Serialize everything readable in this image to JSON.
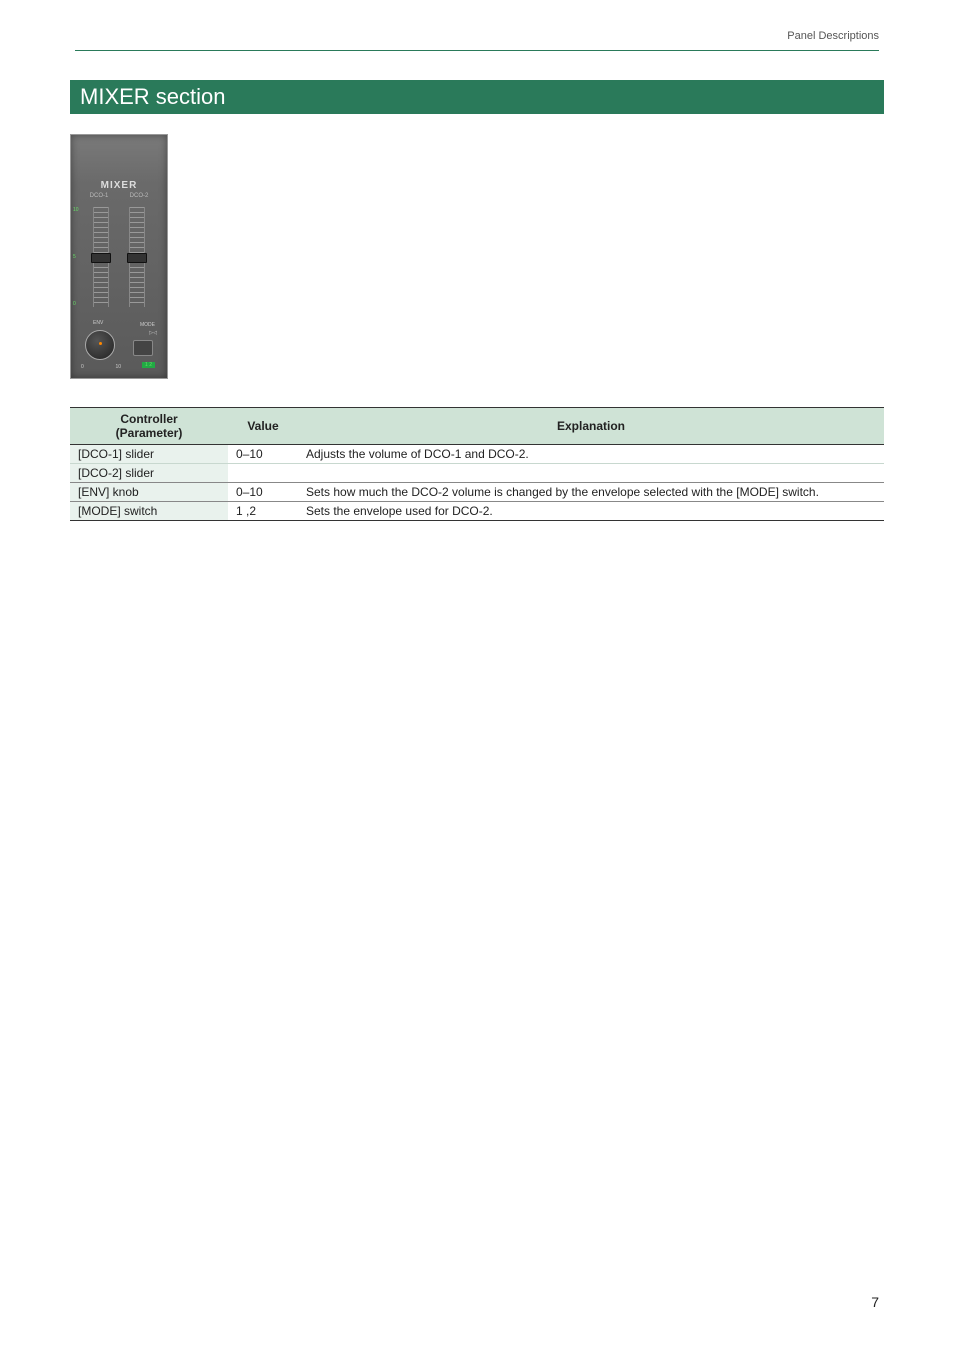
{
  "header": {
    "breadcrumb": "Panel Descriptions"
  },
  "section": {
    "title": "MIXER section"
  },
  "panel": {
    "title": "MIXER",
    "col1": "DCO-1",
    "col2": "DCO-2",
    "scale_top": "10",
    "scale_mid": "5",
    "scale_bot": "0",
    "env_label": "ENV",
    "mode_label": "MODE",
    "knob_min": "0",
    "knob_max": "10",
    "mode_nums": "1  2",
    "mode_icons": "▷◁"
  },
  "table": {
    "headers": {
      "controller": "Controller\n(Parameter)",
      "value": "Value",
      "explanation": "Explanation"
    },
    "rows": [
      {
        "controller": "[DCO-1] slider",
        "value": "0–10",
        "explanation": "Adjusts the volume of DCO-1 and DCO-2."
      },
      {
        "controller": "[DCO-2] slider",
        "value": "",
        "explanation": ""
      },
      {
        "controller": "[ENV] knob",
        "value": "0–10",
        "explanation": "Sets how much the DCO-2 volume is changed by the envelope selected with the [MODE] switch."
      },
      {
        "controller": "[MODE] switch",
        "value": "1 ,2",
        "explanation": "Sets the envelope used for DCO-2."
      }
    ]
  },
  "page": {
    "number": "7"
  }
}
